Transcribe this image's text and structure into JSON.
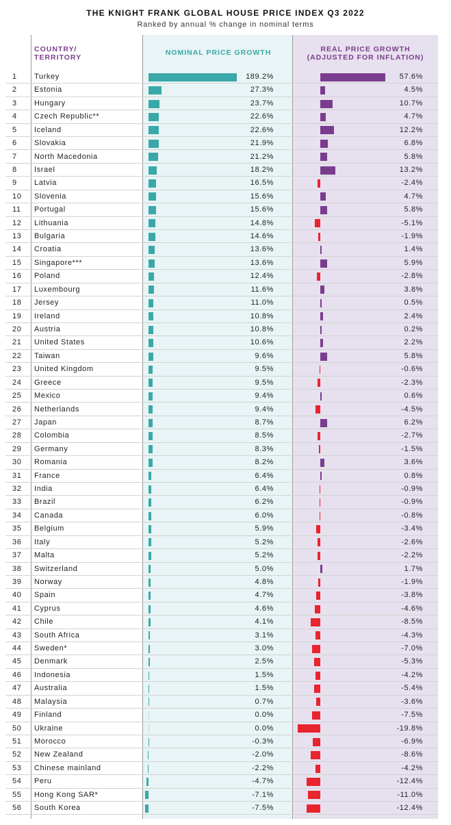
{
  "title": "THE KNIGHT FRANK GLOBAL HOUSE PRICE INDEX Q3 2022",
  "subtitle": "Ranked by annual % change in nominal terms",
  "headers": {
    "country_line1": "COUNTRY/",
    "country_line2": "TERRITORY",
    "nominal": "NOMINAL PRICE GROWTH",
    "real_line1": "REAL PRICE GROWTH",
    "real_line2": "(ADJUSTED FOR INFLATION)"
  },
  "colors": {
    "nominal_bar": "#3aa8a8",
    "real_positive_bar": "#7a3d8e",
    "real_negative_bar": "#e8242f",
    "nominal_background": "#e8f4f5",
    "real_background": "#e7e0ee"
  },
  "chart_data": {
    "type": "table",
    "title": "THE KNIGHT FRANK GLOBAL HOUSE PRICE INDEX Q3 2022",
    "subtitle": "Ranked by annual % change in nominal terms",
    "columns": [
      "COUNTRY/ TERRITORY",
      "NOMINAL PRICE GROWTH",
      "REAL PRICE GROWTH (ADJUSTED FOR INFLATION)"
    ],
    "rows": [
      {
        "rank": "1",
        "country": "Turkey",
        "nominal": 189.2,
        "real": 57.6
      },
      {
        "rank": "2",
        "country": "Estonia",
        "nominal": 27.3,
        "real": 4.5
      },
      {
        "rank": "3",
        "country": "Hungary",
        "nominal": 23.7,
        "real": 10.7
      },
      {
        "rank": "4",
        "country": "Czech Republic**",
        "nominal": 22.6,
        "real": 4.7
      },
      {
        "rank": "5",
        "country": "Iceland",
        "nominal": 22.6,
        "real": 12.2
      },
      {
        "rank": "6",
        "country": "Slovakia",
        "nominal": 21.9,
        "real": 6.8
      },
      {
        "rank": "7",
        "country": "North Macedonia",
        "nominal": 21.2,
        "real": 5.8
      },
      {
        "rank": "8",
        "country": "Israel",
        "nominal": 18.2,
        "real": 13.2
      },
      {
        "rank": "9",
        "country": "Latvia",
        "nominal": 16.5,
        "real": -2.4
      },
      {
        "rank": "10",
        "country": "Slovenia",
        "nominal": 15.6,
        "real": 4.7
      },
      {
        "rank": "11",
        "country": "Portugal",
        "nominal": 15.6,
        "real": 5.8
      },
      {
        "rank": "12",
        "country": "Lithuania",
        "nominal": 14.8,
        "real": -5.1
      },
      {
        "rank": "13",
        "country": "Bulgaria",
        "nominal": 14.6,
        "real": -1.9
      },
      {
        "rank": "14",
        "country": "Croatia",
        "nominal": 13.6,
        "real": 1.4
      },
      {
        "rank": "15",
        "country": "Singapore***",
        "nominal": 13.6,
        "real": 5.9
      },
      {
        "rank": "16",
        "country": "Poland",
        "nominal": 12.4,
        "real": -2.8
      },
      {
        "rank": "17",
        "country": "Luxembourg",
        "nominal": 11.6,
        "real": 3.8
      },
      {
        "rank": "18",
        "country": "Jersey",
        "nominal": 11.0,
        "real": 0.5
      },
      {
        "rank": "19",
        "country": "Ireland",
        "nominal": 10.8,
        "real": 2.4
      },
      {
        "rank": "20",
        "country": "Austria",
        "nominal": 10.8,
        "real": 0.2
      },
      {
        "rank": "21",
        "country": "United States",
        "nominal": 10.6,
        "real": 2.2
      },
      {
        "rank": "22",
        "country": "Taiwan",
        "nominal": 9.6,
        "real": 5.8
      },
      {
        "rank": "23",
        "country": "United Kingdom",
        "nominal": 9.5,
        "real": -0.6
      },
      {
        "rank": "24",
        "country": "Greece",
        "nominal": 9.5,
        "real": -2.3
      },
      {
        "rank": "25",
        "country": "Mexico",
        "nominal": 9.4,
        "real": 0.6
      },
      {
        "rank": "26",
        "country": "Netherlands",
        "nominal": 9.4,
        "real": -4.5
      },
      {
        "rank": "27",
        "country": "Japan",
        "nominal": 8.7,
        "real": 6.2
      },
      {
        "rank": "28",
        "country": "Colombia",
        "nominal": 8.5,
        "real": -2.7
      },
      {
        "rank": "29",
        "country": "Germany",
        "nominal": 8.3,
        "real": -1.5
      },
      {
        "rank": "30",
        "country": "Romania",
        "nominal": 8.2,
        "real": 3.6
      },
      {
        "rank": "31",
        "country": "France",
        "nominal": 6.4,
        "real": 0.8
      },
      {
        "rank": "32",
        "country": "India",
        "nominal": 6.4,
        "real": -0.9
      },
      {
        "rank": "33",
        "country": "Brazil",
        "nominal": 6.2,
        "real": -0.9
      },
      {
        "rank": "34",
        "country": "Canada",
        "nominal": 6.0,
        "real": -0.8
      },
      {
        "rank": "35",
        "country": "Belgium",
        "nominal": 5.9,
        "real": -3.4
      },
      {
        "rank": "36",
        "country": "Italy",
        "nominal": 5.2,
        "real": -2.6
      },
      {
        "rank": "37",
        "country": "Malta",
        "nominal": 5.2,
        "real": -2.2
      },
      {
        "rank": "38",
        "country": "Switzerland",
        "nominal": 5.0,
        "real": 1.7
      },
      {
        "rank": "39",
        "country": "Norway",
        "nominal": 4.8,
        "real": -1.9
      },
      {
        "rank": "40",
        "country": "Spain",
        "nominal": 4.7,
        "real": -3.8
      },
      {
        "rank": "41",
        "country": "Cyprus",
        "nominal": 4.6,
        "real": -4.6
      },
      {
        "rank": "42",
        "country": "Chile",
        "nominal": 4.1,
        "real": -8.5
      },
      {
        "rank": "43",
        "country": "South Africa",
        "nominal": 3.1,
        "real": -4.3
      },
      {
        "rank": "44",
        "country": "Sweden*",
        "nominal": 3.0,
        "real": -7.0
      },
      {
        "rank": "45",
        "country": "Denmark",
        "nominal": 2.5,
        "real": -5.3
      },
      {
        "rank": "46",
        "country": "Indonesia",
        "nominal": 1.5,
        "real": -4.2
      },
      {
        "rank": "47",
        "country": "Australia",
        "nominal": 1.5,
        "real": -5.4
      },
      {
        "rank": "48",
        "country": "Malaysia",
        "nominal": 0.7,
        "real": -3.6
      },
      {
        "rank": "49",
        "country": "Finland",
        "nominal": 0.0,
        "real": -7.5
      },
      {
        "rank": "50",
        "country": "Ukraine",
        "nominal": 0.0,
        "real": -19.8
      },
      {
        "rank": "51",
        "country": "Morocco",
        "nominal": -0.3,
        "real": -6.9
      },
      {
        "rank": "52",
        "country": "New Zealand",
        "nominal": -2.0,
        "real": -8.6
      },
      {
        "rank": "53",
        "country": "Chinese mainland",
        "nominal": -2.2,
        "real": -4.2
      },
      {
        "rank": "54",
        "country": "Peru",
        "nominal": -4.7,
        "real": -12.4
      },
      {
        "rank": "55",
        "country": "Hong Kong SAR*",
        "nominal": -7.1,
        "real": -11.0
      },
      {
        "rank": "56",
        "country": "South Korea",
        "nominal": -7.5,
        "real": -12.4
      }
    ]
  }
}
